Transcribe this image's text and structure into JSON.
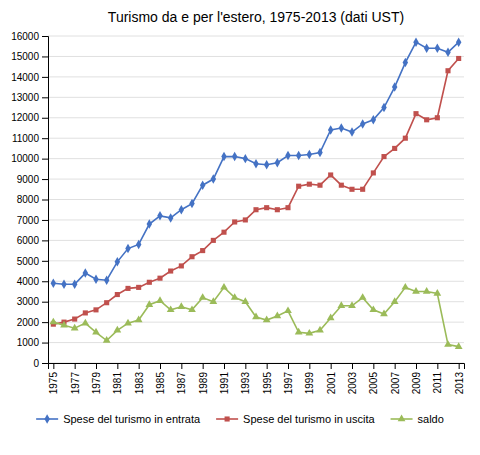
{
  "chart_data": {
    "type": "line",
    "title": "Turismo da e per l'estero, 1975-2013 (dati UST)",
    "x": [
      1975,
      1976,
      1977,
      1978,
      1979,
      1980,
      1981,
      1982,
      1983,
      1984,
      1985,
      1986,
      1987,
      1988,
      1989,
      1990,
      1991,
      1992,
      1993,
      1994,
      1995,
      1996,
      1997,
      1998,
      1999,
      2000,
      2001,
      2002,
      2003,
      2004,
      2005,
      2006,
      2007,
      2008,
      2009,
      2010,
      2011,
      2012,
      2013
    ],
    "series": [
      {
        "name": "Spese del turismo in entrata",
        "color": "#4472C4",
        "marker": "diamond",
        "values": [
          3900,
          3850,
          3850,
          4400,
          4100,
          4050,
          4950,
          5600,
          5800,
          6800,
          7200,
          7100,
          7500,
          7800,
          8700,
          9000,
          10100,
          10100,
          10000,
          9750,
          9700,
          9800,
          10150,
          10150,
          10200,
          10300,
          11400,
          11500,
          11300,
          11700,
          11900,
          12500,
          13500,
          14700,
          15700,
          15400,
          15400,
          15200,
          15700
        ]
      },
      {
        "name": "Spese del turismo in uscita",
        "color": "#C0504D",
        "marker": "square",
        "values": [
          1900,
          2000,
          2150,
          2450,
          2600,
          2950,
          3350,
          3650,
          3700,
          3950,
          4150,
          4500,
          4750,
          5200,
          5500,
          6000,
          6400,
          6900,
          7000,
          7500,
          7600,
          7500,
          7600,
          8650,
          8750,
          8700,
          9200,
          8700,
          8500,
          8500,
          9300,
          10100,
          10500,
          11000,
          12200,
          11900,
          12000,
          14300,
          14900
        ]
      },
      {
        "name": "saldo",
        "color": "#9BBB59",
        "marker": "triangle",
        "values": [
          2000,
          1850,
          1700,
          1950,
          1500,
          1100,
          1600,
          1950,
          2100,
          2850,
          3050,
          2600,
          2750,
          2600,
          3200,
          3000,
          3700,
          3200,
          3000,
          2250,
          2100,
          2300,
          2550,
          1500,
          1450,
          1600,
          2200,
          2800,
          2800,
          3200,
          2600,
          2400,
          3000,
          3700,
          3500,
          3500,
          3400,
          900,
          800
        ]
      }
    ],
    "xlim": [
      1974.5,
      2013.5
    ],
    "xticks": [
      1975,
      1977,
      1979,
      1981,
      1983,
      1985,
      1987,
      1989,
      1991,
      1993,
      1995,
      1997,
      1999,
      2001,
      2003,
      2005,
      2007,
      2009,
      2011,
      2013
    ],
    "ylim": [
      0,
      16000
    ],
    "yticks": [
      0,
      1000,
      2000,
      3000,
      4000,
      5000,
      6000,
      7000,
      8000,
      9000,
      10000,
      11000,
      12000,
      13000,
      14000,
      15000,
      16000
    ],
    "grid": true,
    "legend": "bottom"
  }
}
